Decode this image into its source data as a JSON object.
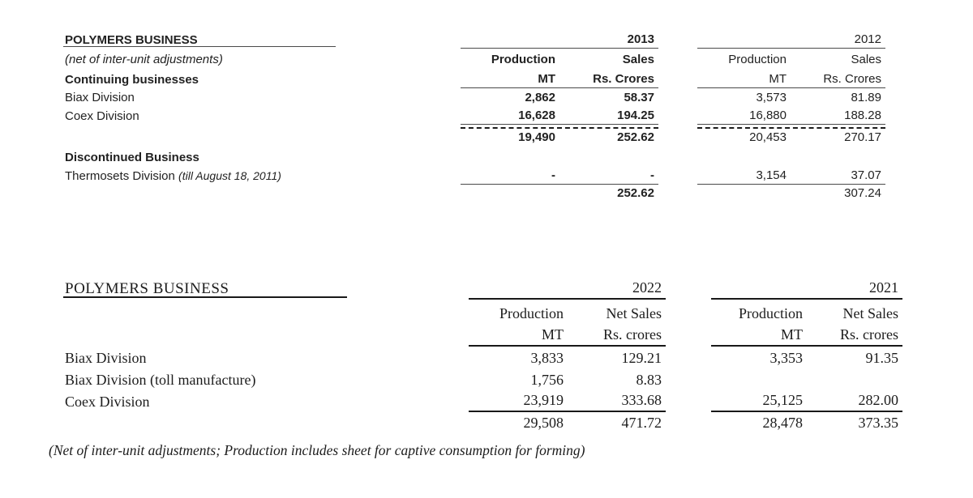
{
  "top": {
    "title": "POLYMERS BUSINESS",
    "subtitle": "(net of inter-unit adjustments)",
    "continuing": "Continuing businesses",
    "discontinued": "Discontinued Business",
    "year_cur": "2013",
    "year_pri": "2012",
    "h_prod": "Production",
    "h_sales": "Sales",
    "h_mt": "MT",
    "h_unit": "Rs. Crores",
    "rows": [
      {
        "label": "Biax Division",
        "pc": "2,862",
        "sc": "58.37",
        "pp": "3,573",
        "sp": "81.89"
      },
      {
        "label": "Coex Division",
        "pc": "16,628",
        "sc": "194.25",
        "pp": "16,880",
        "sp": "188.28"
      }
    ],
    "total_cont": {
      "pc": "19,490",
      "sc": "252.62",
      "pp": "20,453",
      "sp": "270.17"
    },
    "thermo_label": "Thermosets Division",
    "thermo_note": "(till August 18, 2011)",
    "thermo": {
      "pc": "-",
      "sc": "-",
      "pp": "3,154",
      "sp": "37.07"
    },
    "grand": {
      "sc": "252.62",
      "sp": "307.24"
    }
  },
  "bottom": {
    "title": "POLYMERS BUSINESS",
    "year_cur": "2022",
    "year_pri": "2021",
    "h_prod": "Production",
    "h_sales": "Net Sales",
    "h_mt": "MT",
    "h_unit": "Rs. crores",
    "rows": [
      {
        "label": "Biax Division",
        "pc": "3,833",
        "sc": "129.21",
        "pp": "3,353",
        "sp": "91.35"
      },
      {
        "label": "Biax Division (toll manufacture)",
        "pc": "1,756",
        "sc": "8.83",
        "pp": "",
        "sp": ""
      },
      {
        "label": "Coex Division",
        "pc": "23,919",
        "sc": "333.68",
        "pp": "25,125",
        "sp": "282.00"
      }
    ],
    "total": {
      "pc": "29,508",
      "sc": "471.72",
      "pp": "28,478",
      "sp": "373.35"
    },
    "footnote": "(Net of inter-unit adjustments; Production includes sheet for captive consumption for forming)"
  }
}
